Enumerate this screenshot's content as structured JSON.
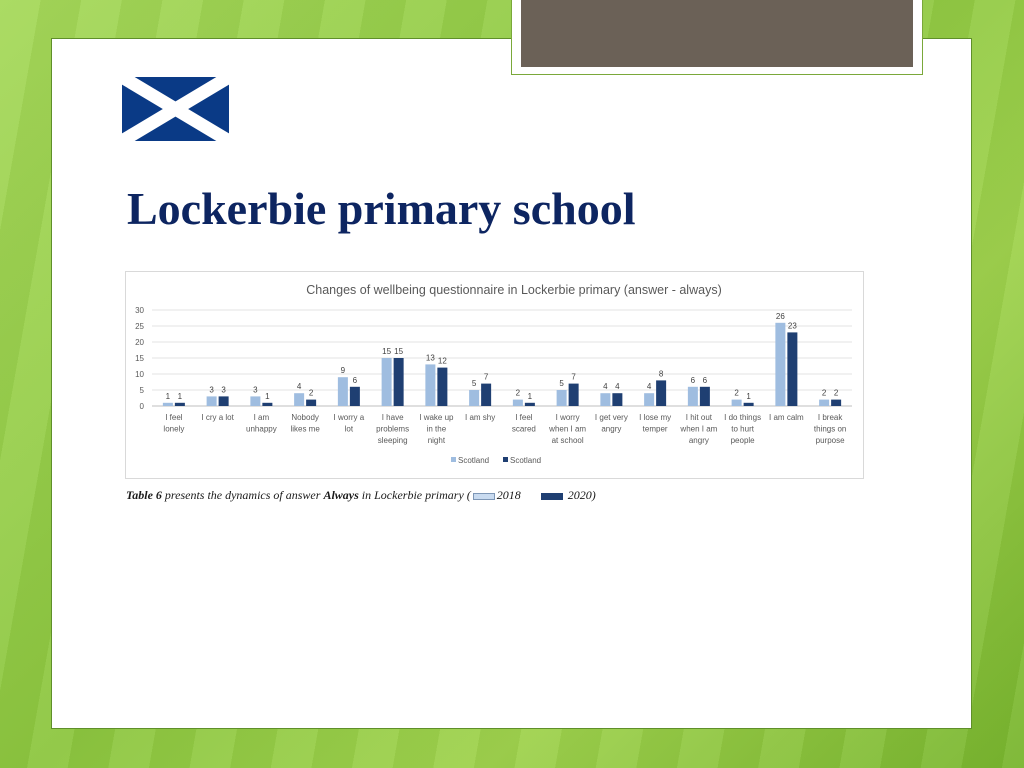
{
  "slide": {
    "title": "Lockerbie primary school"
  },
  "colors": {
    "title": "#0d2561",
    "series_2018": "#9fbde0",
    "series_2020": "#1f3f72",
    "background_green": "#8cc63f"
  },
  "flag_icon": "scotland-saltire-flag",
  "chart_data": {
    "type": "bar",
    "title": "Changes of wellbeing questionnaire in Lockerbie primary (answer - always)",
    "categories": [
      [
        "I feel",
        "lonely"
      ],
      [
        "I cry a lot"
      ],
      [
        "I am",
        "unhappy"
      ],
      [
        "Nobody",
        "likes me"
      ],
      [
        "I worry a",
        "lot"
      ],
      [
        "I have",
        "problems",
        "sleeping"
      ],
      [
        "I wake up",
        "in the",
        "night"
      ],
      [
        "I am shy"
      ],
      [
        "I feel",
        "scared"
      ],
      [
        "I worry",
        "when I am",
        "at school"
      ],
      [
        "I get very",
        "angry"
      ],
      [
        "I lose my",
        "temper"
      ],
      [
        "I hit out",
        "when I am",
        "angry"
      ],
      [
        "I do things",
        "to hurt",
        "people"
      ],
      [
        "I am calm"
      ],
      [
        "I break",
        "things on",
        "purpose"
      ]
    ],
    "series": [
      {
        "name": "Scotland",
        "color": "#9fbde0",
        "values": [
          1,
          3,
          3,
          4,
          9,
          15,
          13,
          5,
          2,
          5,
          4,
          4,
          6,
          2,
          26,
          2
        ]
      },
      {
        "name": "Scotland",
        "color": "#1f3f72",
        "values": [
          1,
          3,
          1,
          2,
          6,
          15,
          12,
          7,
          1,
          7,
          4,
          8,
          6,
          1,
          23,
          2
        ]
      }
    ],
    "yticks": [
      "0",
      "5",
      "10",
      "15",
      "20",
      "25",
      "30"
    ],
    "ylim": [
      0,
      30
    ],
    "grid": true,
    "legend": "bottom-center"
  },
  "caption": {
    "part1": "Table 6",
    "part2": " presents the dynamics of answer ",
    "part3": "Always",
    "part4": " in Lockerbie primary (",
    "label_2018": "2018",
    "label_2020": "2020)"
  }
}
